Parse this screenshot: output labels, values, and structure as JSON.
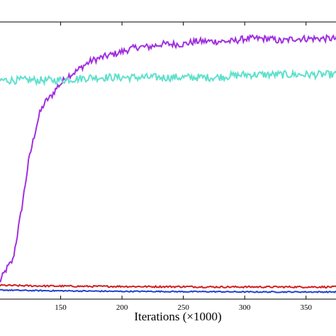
{
  "chart_data": {
    "type": "line",
    "xlabel": "Iterations (×1000)",
    "ylabel": "",
    "title": "",
    "xlim": [
      100,
      375
    ],
    "ylim": [
      0,
      1
    ],
    "grid": false,
    "x_ticks": [
      "150",
      "200",
      "250",
      "300",
      "350"
    ],
    "series": [
      {
        "color": "#a030e0",
        "x": [
          100,
          106,
          111,
          115,
          118,
          121,
          124,
          127,
          130,
          133,
          136,
          139,
          142,
          145,
          148,
          151,
          154,
          158,
          162,
          168,
          175,
          182,
          190,
          198,
          205,
          213,
          222,
          232,
          240,
          250,
          260,
          270,
          280,
          290,
          300,
          310,
          320,
          330,
          340,
          350,
          360,
          370,
          375
        ],
        "y": [
          0.06,
          0.11,
          0.14,
          0.24,
          0.32,
          0.41,
          0.5,
          0.56,
          0.62,
          0.67,
          0.7,
          0.72,
          0.73,
          0.75,
          0.77,
          0.78,
          0.8,
          0.81,
          0.82,
          0.84,
          0.86,
          0.87,
          0.88,
          0.89,
          0.9,
          0.91,
          0.91,
          0.92,
          0.92,
          0.92,
          0.93,
          0.93,
          0.93,
          0.93,
          0.94,
          0.94,
          0.94,
          0.93,
          0.94,
          0.94,
          0.94,
          0.94,
          0.94
        ]
      },
      {
        "color": "#5fe0cc",
        "x": [
          100,
          125,
          150,
          175,
          200,
          225,
          250,
          275,
          300,
          325,
          350,
          375
        ],
        "y": [
          0.79,
          0.79,
          0.79,
          0.8,
          0.8,
          0.8,
          0.8,
          0.8,
          0.81,
          0.81,
          0.81,
          0.81
        ]
      },
      {
        "color": "#d02020",
        "x": [
          100,
          125,
          150,
          175,
          200,
          225,
          250,
          275,
          300,
          325,
          350,
          375
        ],
        "y": [
          0.05,
          0.048,
          0.047,
          0.046,
          0.046,
          0.045,
          0.045,
          0.044,
          0.044,
          0.044,
          0.044,
          0.044
        ]
      },
      {
        "color": "#2040d0",
        "x": [
          100,
          125,
          150,
          175,
          200,
          225,
          250,
          275,
          300,
          325,
          350,
          375
        ],
        "y": [
          0.033,
          0.031,
          0.03,
          0.029,
          0.028,
          0.028,
          0.027,
          0.027,
          0.026,
          0.026,
          0.026,
          0.026
        ]
      }
    ]
  }
}
